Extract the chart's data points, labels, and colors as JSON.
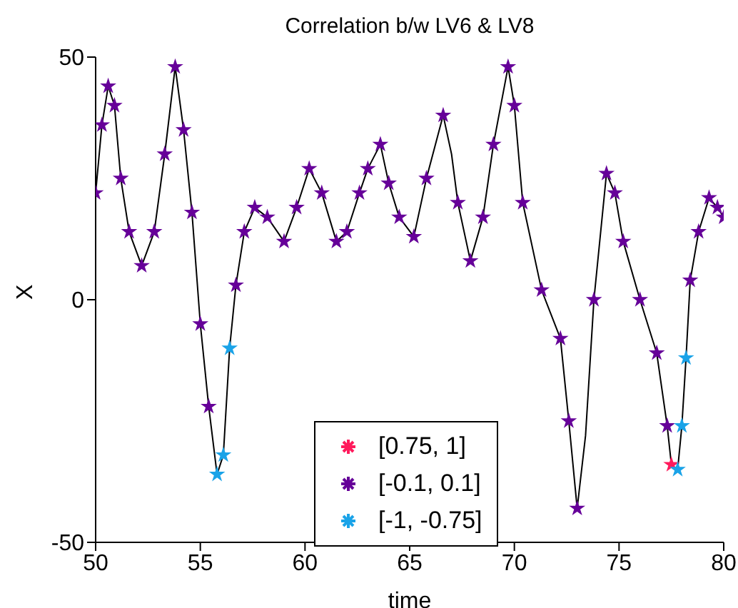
{
  "chart_data": {
    "type": "line",
    "title": "Correlation b/w LV6 & LV8",
    "xlabel": "time",
    "ylabel": "X",
    "xlim": [
      50,
      80
    ],
    "xticks": [
      50,
      55,
      60,
      65,
      70,
      75,
      80
    ],
    "ylim": [
      -50,
      50
    ],
    "yticks": [
      -50,
      0,
      50
    ],
    "grid": false,
    "legend": "bottom",
    "marker": "star",
    "series": [
      {
        "color": "#000000",
        "marker": "none",
        "x": [
          50,
          50.3,
          50.6,
          50.9,
          51.2,
          51.6,
          52.2,
          52.8,
          53.3,
          53.8,
          54.2,
          54.6,
          55.0,
          55.4,
          55.8,
          56.1,
          56.4,
          56.7,
          57.1,
          57.6,
          58.2,
          59.0,
          59.6,
          60.2,
          60.8,
          61.5,
          62.0,
          62.6,
          63.0,
          63.6,
          64.0,
          64.5,
          65.2,
          65.8,
          66.6,
          67.0,
          67.3,
          67.9,
          68.5,
          69.0,
          69.7,
          70.0,
          70.4,
          71.3,
          72.2,
          72.6,
          73.0,
          73.4,
          73.8,
          74.4,
          74.8,
          75.2,
          76.0,
          76.8,
          77.3,
          77.5,
          77.8,
          78.0,
          78.2,
          78.4,
          78.8,
          79.3,
          79.7,
          80
        ],
        "values": [
          22,
          36,
          44,
          40,
          25,
          14,
          7,
          14,
          30,
          48,
          35,
          18,
          -5,
          -22,
          -36,
          -32,
          -10,
          3,
          14,
          19,
          17,
          12,
          19,
          27,
          22,
          12,
          14,
          22,
          27,
          32,
          24,
          17,
          13,
          25,
          38,
          30,
          20,
          8,
          17,
          32,
          48,
          40,
          20,
          2,
          -8,
          -25,
          -43,
          -28,
          0,
          26,
          22,
          12,
          0,
          -11,
          -26,
          -34,
          -35,
          -26,
          -12,
          4,
          14,
          21,
          19,
          17
        ]
      },
      {
        "type": "scatter",
        "name": "[0.75, 1]",
        "color": "#ff1a5c",
        "x": [
          77.5
        ],
        "values": [
          -34
        ]
      },
      {
        "type": "scatter",
        "name": "[-0.1, 0.1]",
        "color": "#660099",
        "x": [
          50,
          50.3,
          50.6,
          50.9,
          51.2,
          51.6,
          52.2,
          52.8,
          53.3,
          53.8,
          54.2,
          54.6,
          55.0,
          55.4,
          56.7,
          57.1,
          57.6,
          58.2,
          59.0,
          59.6,
          60.2,
          60.8,
          61.5,
          62.0,
          62.6,
          63.0,
          63.6,
          64.0,
          64.5,
          65.2,
          65.8,
          66.6,
          67.3,
          67.9,
          68.5,
          69.0,
          69.7,
          70.0,
          70.4,
          71.3,
          72.2,
          72.6,
          73.0,
          73.8,
          74.4,
          74.8,
          75.2,
          76.0,
          76.8,
          77.3,
          78.4,
          78.8,
          79.3,
          79.7,
          80
        ],
        "values": [
          22,
          36,
          44,
          40,
          25,
          14,
          7,
          14,
          30,
          48,
          35,
          18,
          -5,
          -22,
          3,
          14,
          19,
          17,
          12,
          19,
          27,
          22,
          12,
          14,
          22,
          27,
          32,
          24,
          17,
          13,
          25,
          38,
          20,
          8,
          17,
          32,
          48,
          40,
          20,
          2,
          -8,
          -25,
          -43,
          0,
          26,
          22,
          12,
          0,
          -11,
          -26,
          4,
          14,
          21,
          19,
          17
        ]
      },
      {
        "type": "scatter",
        "name": "[-1, -0.75]",
        "color": "#1aa3e8",
        "x": [
          55.8,
          56.1,
          56.4,
          77.8,
          78.0,
          78.2
        ],
        "values": [
          -36,
          -32,
          -10,
          -35,
          -26,
          -12
        ]
      }
    ]
  }
}
